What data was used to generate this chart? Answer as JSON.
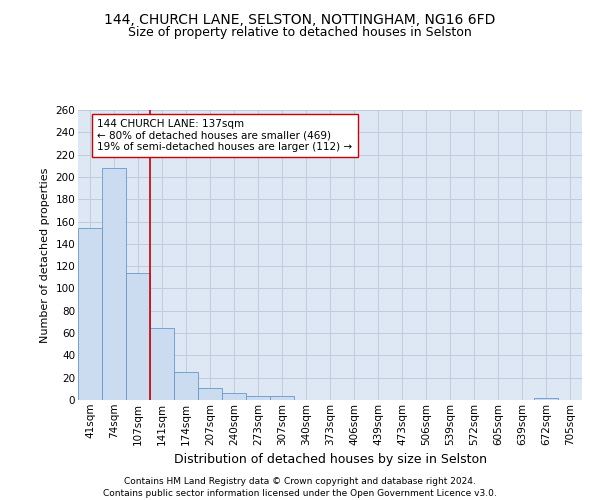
{
  "title1": "144, CHURCH LANE, SELSTON, NOTTINGHAM, NG16 6FD",
  "title2": "Size of property relative to detached houses in Selston",
  "xlabel": "Distribution of detached houses by size in Selston",
  "ylabel": "Number of detached properties",
  "footer1": "Contains HM Land Registry data © Crown copyright and database right 2024.",
  "footer2": "Contains public sector information licensed under the Open Government Licence v3.0.",
  "categories": [
    "41sqm",
    "74sqm",
    "107sqm",
    "141sqm",
    "174sqm",
    "207sqm",
    "240sqm",
    "273sqm",
    "307sqm",
    "340sqm",
    "373sqm",
    "406sqm",
    "439sqm",
    "473sqm",
    "506sqm",
    "539sqm",
    "572sqm",
    "605sqm",
    "639sqm",
    "672sqm",
    "705sqm"
  ],
  "values": [
    154,
    208,
    114,
    65,
    25,
    11,
    6,
    4,
    4,
    0,
    0,
    0,
    0,
    0,
    0,
    0,
    0,
    0,
    0,
    2,
    0
  ],
  "bar_color": "#ccdcf0",
  "bar_edge_color": "#6699cc",
  "vline_color": "#cc0000",
  "annotation_text": "144 CHURCH LANE: 137sqm\n← 80% of detached houses are smaller (469)\n19% of semi-detached houses are larger (112) →",
  "annotation_box_color": "white",
  "annotation_box_edge_color": "#cc0000",
  "ylim": [
    0,
    260
  ],
  "yticks": [
    0,
    20,
    40,
    60,
    80,
    100,
    120,
    140,
    160,
    180,
    200,
    220,
    240,
    260
  ],
  "grid_color": "#c0ccdd",
  "bg_color": "#dde8f4",
  "title1_fontsize": 10,
  "title2_fontsize": 9,
  "xlabel_fontsize": 9,
  "ylabel_fontsize": 8,
  "tick_fontsize": 7.5,
  "annotation_fontsize": 7.5,
  "footer_fontsize": 6.5
}
